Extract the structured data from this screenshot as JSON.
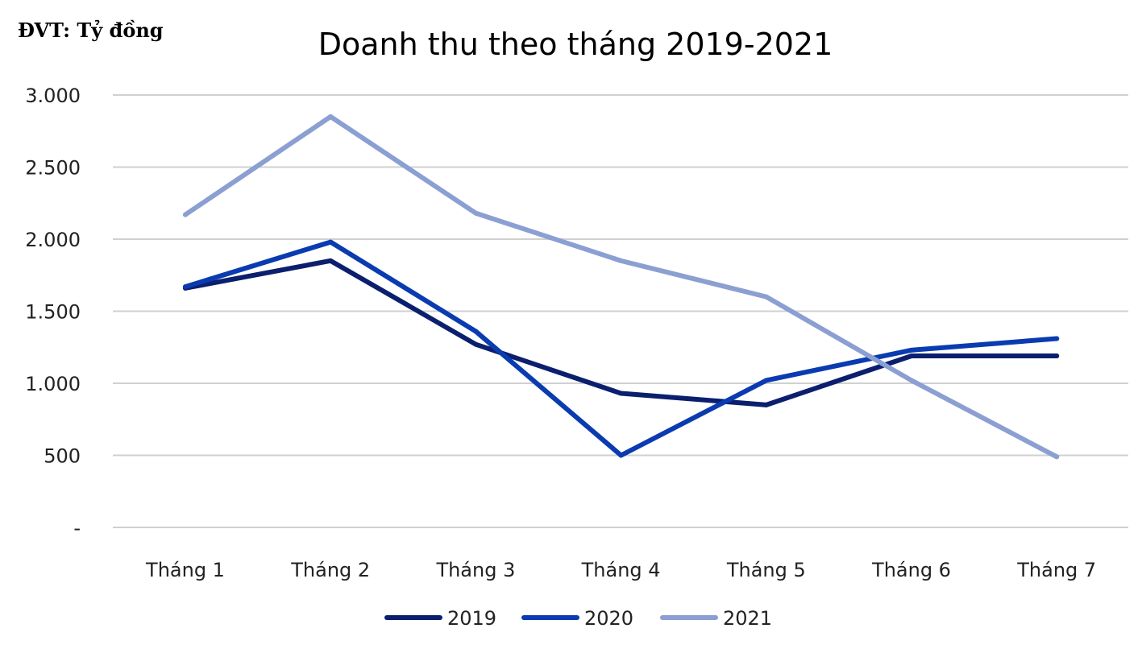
{
  "chart_data": {
    "type": "line",
    "title": "Doanh thu theo tháng 2019-2021",
    "unit_label": "ĐVT: Tỷ đồng",
    "categories": [
      "Tháng 1",
      "Tháng 2",
      "Tháng 3",
      "Tháng 4",
      "Tháng 5",
      "Tháng 6",
      "Tháng 7"
    ],
    "ylim": [
      0,
      3000
    ],
    "yticks": [
      {
        "value": 0,
        "label": "-"
      },
      {
        "value": 500,
        "label": "500"
      },
      {
        "value": 1000,
        "label": "1.000"
      },
      {
        "value": 1500,
        "label": "1.500"
      },
      {
        "value": 2000,
        "label": "2.000"
      },
      {
        "value": 2500,
        "label": "2.500"
      },
      {
        "value": 3000,
        "label": "3.000"
      }
    ],
    "grid": true,
    "legend_position": "bottom",
    "series": [
      {
        "name": "2019",
        "color": "#0b1f6e",
        "values": [
          1660,
          1850,
          1270,
          930,
          850,
          1190,
          1190
        ]
      },
      {
        "name": "2020",
        "color": "#0a3bb0",
        "values": [
          1670,
          1980,
          1360,
          500,
          1020,
          1230,
          1310
        ]
      },
      {
        "name": "2021",
        "color": "#8c9fd2",
        "values": [
          2170,
          2850,
          2180,
          1850,
          1600,
          1020,
          490
        ]
      }
    ]
  }
}
